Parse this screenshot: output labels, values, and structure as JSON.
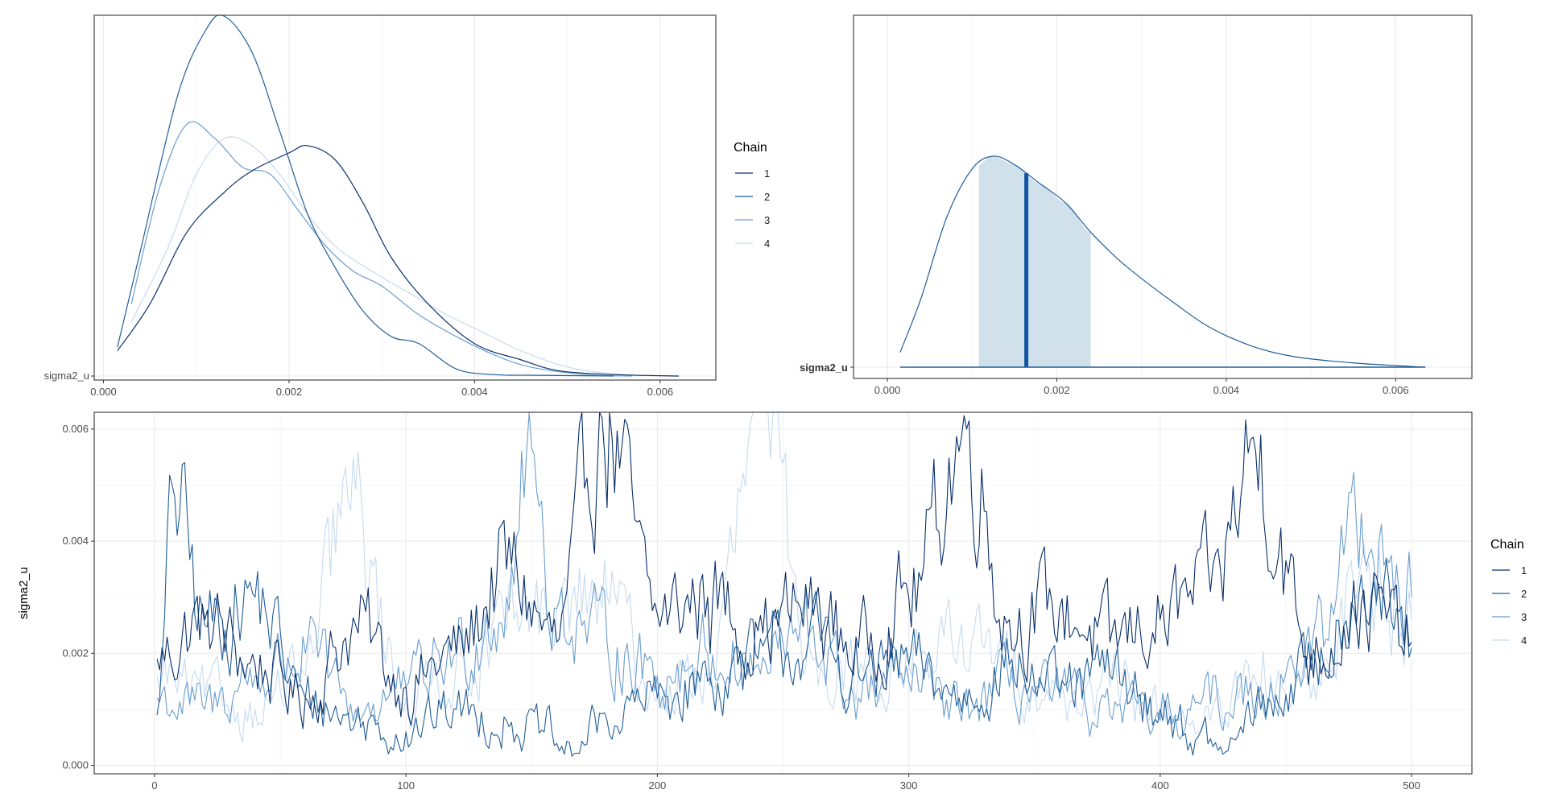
{
  "chart_data": [
    {
      "type": "line",
      "kind": "density-overlay",
      "x_ticks": [
        "0.000",
        "0.002",
        "0.004",
        "0.006"
      ],
      "x_tick_values": [
        0.0,
        0.002,
        0.004,
        0.006
      ],
      "xlim": [
        -0.0001,
        0.0066
      ],
      "y_tick_labels": [
        "sigma2_u"
      ],
      "legend": {
        "title": "Chain",
        "position": "right",
        "entries": [
          "1",
          "2",
          "3",
          "4"
        ]
      },
      "colors": [
        "#08306b",
        "#205e98",
        "#6a9ecf",
        "#c6dbef"
      ],
      "series": [
        {
          "name": "1",
          "x": [
            0.00015,
            0.0005,
            0.0009,
            0.0013,
            0.0016,
            0.002,
            0.0022,
            0.0025,
            0.0028,
            0.0031,
            0.0035,
            0.004,
            0.0045,
            0.0049,
            0.0055,
            0.0062
          ],
          "y": [
            0.07,
            0.2,
            0.4,
            0.51,
            0.57,
            0.62,
            0.64,
            0.6,
            0.48,
            0.33,
            0.2,
            0.09,
            0.045,
            0.015,
            0.004,
            0.0
          ]
        },
        {
          "name": "2",
          "x": [
            0.00015,
            0.0004,
            0.0008,
            0.0011,
            0.0013,
            0.0016,
            0.0019,
            0.0022,
            0.0025,
            0.0028,
            0.0031,
            0.0034,
            0.0038,
            0.0042,
            0.0047,
            0.0055
          ],
          "y": [
            0.08,
            0.35,
            0.78,
            0.96,
            1.0,
            0.9,
            0.68,
            0.45,
            0.3,
            0.18,
            0.11,
            0.09,
            0.02,
            0.004,
            0.002,
            0.0
          ]
        },
        {
          "name": "3",
          "x": [
            0.0003,
            0.0006,
            0.0009,
            0.0012,
            0.0015,
            0.0018,
            0.0021,
            0.0024,
            0.0027,
            0.003,
            0.0034,
            0.0038,
            0.0042,
            0.0046,
            0.0052,
            0.0057
          ],
          "y": [
            0.2,
            0.52,
            0.7,
            0.66,
            0.58,
            0.56,
            0.46,
            0.36,
            0.29,
            0.25,
            0.17,
            0.11,
            0.06,
            0.025,
            0.004,
            0.0
          ]
        },
        {
          "name": "4",
          "x": [
            0.0003,
            0.0007,
            0.001,
            0.0013,
            0.0016,
            0.0019,
            0.0022,
            0.0025,
            0.0029,
            0.0033,
            0.0037,
            0.0041,
            0.0045,
            0.005,
            0.0055,
            0.006
          ],
          "y": [
            0.15,
            0.36,
            0.56,
            0.66,
            0.64,
            0.56,
            0.45,
            0.36,
            0.29,
            0.23,
            0.17,
            0.12,
            0.07,
            0.025,
            0.006,
            0.0
          ]
        }
      ]
    },
    {
      "type": "area",
      "kind": "posterior-density-interval",
      "x_ticks": [
        "0.000",
        "0.002",
        "0.004",
        "0.006"
      ],
      "x_tick_values": [
        0.0,
        0.002,
        0.004,
        0.006
      ],
      "xlim": [
        -0.0004,
        0.0069
      ],
      "y_tick_labels": [
        "sigma2_u"
      ],
      "interval": {
        "low": 0.00108,
        "high": 0.0024
      },
      "point_estimate": 0.00164,
      "support": [
        0.00015,
        0.00635
      ],
      "line_color": "#205e98",
      "fill_color": "#d1e1ec",
      "point_color": "#1055a0",
      "x": [
        0.00015,
        0.0004,
        0.0007,
        0.001,
        0.00125,
        0.0015,
        0.0018,
        0.0021,
        0.0024,
        0.0027,
        0.003,
        0.0034,
        0.0038,
        0.0043,
        0.0048,
        0.0055,
        0.00635
      ],
      "y": [
        0.07,
        0.33,
        0.71,
        0.94,
        1.0,
        0.96,
        0.87,
        0.78,
        0.64,
        0.52,
        0.42,
        0.3,
        0.19,
        0.1,
        0.05,
        0.02,
        0.0
      ]
    },
    {
      "type": "line",
      "kind": "trace",
      "x_ticks": [
        "0",
        "100",
        "200",
        "300",
        "400",
        "500"
      ],
      "x_tick_values": [
        0,
        100,
        200,
        300,
        400,
        500
      ],
      "xlim": [
        -24,
        524
      ],
      "y_ticks": [
        "0.000",
        "0.002",
        "0.004",
        "0.006"
      ],
      "y_tick_values": [
        0.0,
        0.002,
        0.004,
        0.006
      ],
      "ylim": [
        -0.00015,
        0.0063
      ],
      "ylabel": "sigma2_u",
      "legend": {
        "title": "Chain",
        "position": "right",
        "entries": [
          "1",
          "2",
          "3",
          "4"
        ]
      },
      "colors": [
        "#08306b",
        "#205e98",
        "#6a9ecf",
        "#c6dbef"
      ],
      "series": [
        {
          "name": "1",
          "x": [
            1,
            20,
            40,
            60,
            80,
            100,
            120,
            140,
            160,
            178,
            200,
            220,
            240,
            260,
            280,
            300,
            323,
            340,
            360,
            380,
            400,
            420,
            438,
            460,
            480,
            500
          ],
          "y": [
            0.0019,
            0.0026,
            0.0018,
            0.0012,
            0.0025,
            0.0014,
            0.002,
            0.0035,
            0.0022,
            0.0062,
            0.0027,
            0.003,
            0.0024,
            0.0028,
            0.0021,
            0.003,
            0.006,
            0.0026,
            0.0028,
            0.0022,
            0.0026,
            0.0031,
            0.0056,
            0.002,
            0.0029,
            0.0022
          ]
        },
        {
          "name": "2",
          "x": [
            1,
            8,
            20,
            40,
            60,
            80,
            100,
            120,
            140,
            155,
            163,
            180,
            200,
            220,
            240,
            260,
            280,
            300,
            320,
            340,
            360,
            380,
            400,
            415,
            425,
            440,
            460,
            480,
            500
          ],
          "y": [
            0.0009,
            0.0048,
            0.0025,
            0.003,
            0.0012,
            0.0008,
            0.0006,
            0.001,
            0.0008,
            0.0006,
            0.0002,
            0.0008,
            0.0012,
            0.0015,
            0.0019,
            0.0022,
            0.0016,
            0.0018,
            0.0012,
            0.0018,
            0.0013,
            0.0016,
            0.001,
            0.0005,
            0.0002,
            0.001,
            0.0017,
            0.0034,
            0.0021
          ]
        },
        {
          "name": "3",
          "x": [
            1,
            20,
            40,
            60,
            80,
            100,
            120,
            140,
            148,
            160,
            180,
            200,
            220,
            240,
            260,
            280,
            300,
            320,
            340,
            360,
            380,
            400,
            420,
            440,
            460,
            480,
            500
          ],
          "y": [
            0.0012,
            0.001,
            0.0016,
            0.002,
            0.001,
            0.0014,
            0.002,
            0.003,
            0.0056,
            0.0028,
            0.0022,
            0.0016,
            0.002,
            0.0018,
            0.0023,
            0.0012,
            0.0015,
            0.001,
            0.0014,
            0.0012,
            0.0009,
            0.0008,
            0.0011,
            0.0014,
            0.002,
            0.0045,
            0.003
          ]
        },
        {
          "name": "4",
          "x": [
            1,
            20,
            40,
            60,
            77,
            100,
            120,
            140,
            160,
            180,
            200,
            220,
            242,
            260,
            280,
            300,
            320,
            340,
            360,
            380,
            400,
            420,
            440,
            460,
            480,
            500
          ],
          "y": [
            0.0016,
            0.0012,
            0.001,
            0.0016,
            0.0047,
            0.0012,
            0.0018,
            0.0024,
            0.0028,
            0.003,
            0.0012,
            0.0016,
            0.0063,
            0.0022,
            0.0016,
            0.0018,
            0.0022,
            0.0018,
            0.0012,
            0.0014,
            0.001,
            0.0008,
            0.0014,
            0.0012,
            0.0036,
            0.0026
          ]
        }
      ]
    }
  ]
}
